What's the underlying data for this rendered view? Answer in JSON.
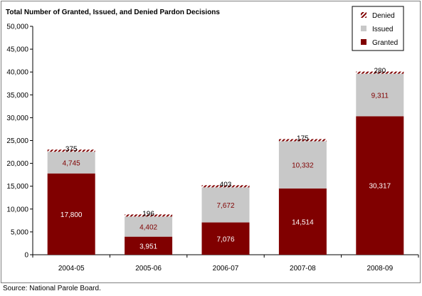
{
  "source_note": "Source: National Parole Board.",
  "colors": {
    "granted": "#800000",
    "issued": "#c8c8c8",
    "denied_a": "#800000",
    "denied_b": "#ffffff"
  },
  "chart_data": {
    "type": "bar",
    "stacked": true,
    "title": "Total Number of Granted, Issued, and Denied Pardon Decisions",
    "xlabel": "",
    "ylabel": "",
    "ylim": [
      0,
      50000
    ],
    "yticks": [
      "0",
      "5,000",
      "10,000",
      "15,000",
      "20,000",
      "25,000",
      "30,000",
      "35,000",
      "40,000",
      "45,000",
      "50,000"
    ],
    "categories": [
      "2004-05",
      "2005-06",
      "2006-07",
      "2007-08",
      "2008-09"
    ],
    "legend_position": "top-right",
    "legend": [
      "Denied",
      "Issued",
      "Granted"
    ],
    "grid": false,
    "series": [
      {
        "name": "Granted",
        "values": [
          17800,
          3951,
          7076,
          14514,
          30317
        ],
        "labels": [
          "17,800",
          "3,951",
          "7,076",
          "14,514",
          "30,317"
        ]
      },
      {
        "name": "Issued",
        "values": [
          4745,
          4402,
          7672,
          10332,
          9311
        ],
        "labels": [
          "4,745",
          "4,402",
          "7,672",
          "10,332",
          "9,311"
        ]
      },
      {
        "name": "Denied",
        "values": [
          375,
          196,
          403,
          175,
          280
        ],
        "labels": [
          "375",
          "196",
          "403",
          "175",
          "280"
        ]
      }
    ]
  }
}
